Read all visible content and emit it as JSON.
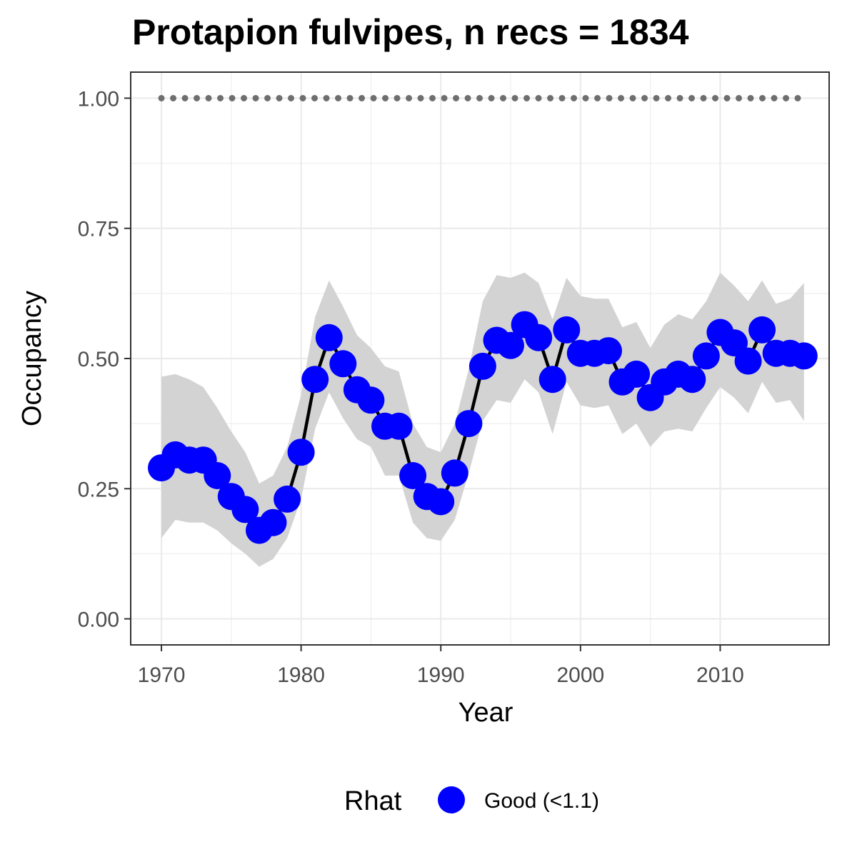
{
  "chart_data": {
    "type": "line",
    "title": "Protapion fulvipes, n recs = 1834",
    "xlabel": "Year",
    "ylabel": "Occupancy",
    "xlim": [
      1967.8,
      2017.8
    ],
    "ylim": [
      -0.05,
      1.05
    ],
    "x_ticks": [
      1970,
      1980,
      1990,
      2000,
      2010
    ],
    "x_tick_labels": [
      "1970",
      "1980",
      "1990",
      "2000",
      "2010"
    ],
    "y_ticks": [
      0,
      0.25,
      0.5,
      0.75,
      1.0
    ],
    "y_tick_labels": [
      "0.00",
      "0.25",
      "0.50",
      "0.75",
      "1.00"
    ],
    "grid": true,
    "legend": {
      "title": "Rhat",
      "position": "bottom",
      "entries": [
        {
          "label": "Good (<1.1)",
          "color": "#0000ff"
        }
      ]
    },
    "x": [
      1970,
      1971,
      1972,
      1973,
      1974,
      1975,
      1976,
      1977,
      1978,
      1979,
      1980,
      1981,
      1982,
      1983,
      1984,
      1985,
      1986,
      1987,
      1988,
      1989,
      1990,
      1991,
      1992,
      1993,
      1994,
      1995,
      1996,
      1997,
      1998,
      1999,
      2000,
      2001,
      2002,
      2003,
      2004,
      2005,
      2006,
      2007,
      2008,
      2009,
      2010,
      2011,
      2012,
      2013,
      2014,
      2015,
      2016
    ],
    "series": [
      {
        "name": "Good (<1.1)",
        "values": [
          0.29,
          0.315,
          0.305,
          0.305,
          0.275,
          0.235,
          0.21,
          0.17,
          0.185,
          0.23,
          0.32,
          0.46,
          0.54,
          0.49,
          0.44,
          0.42,
          0.37,
          0.37,
          0.275,
          0.235,
          0.225,
          0.28,
          0.375,
          0.485,
          0.535,
          0.525,
          0.565,
          0.54,
          0.46,
          0.555,
          0.51,
          0.51,
          0.515,
          0.455,
          0.47,
          0.425,
          0.455,
          0.47,
          0.46,
          0.505,
          0.55,
          0.53,
          0.495,
          0.555,
          0.51,
          0.51,
          0.505
        ],
        "lower": [
          0.155,
          0.19,
          0.185,
          0.185,
          0.17,
          0.145,
          0.125,
          0.1,
          0.115,
          0.155,
          0.23,
          0.365,
          0.435,
          0.385,
          0.345,
          0.33,
          0.275,
          0.275,
          0.185,
          0.155,
          0.15,
          0.19,
          0.28,
          0.38,
          0.42,
          0.415,
          0.46,
          0.435,
          0.355,
          0.455,
          0.41,
          0.405,
          0.41,
          0.355,
          0.375,
          0.33,
          0.36,
          0.365,
          0.36,
          0.405,
          0.445,
          0.425,
          0.395,
          0.455,
          0.415,
          0.42,
          0.38
        ],
        "upper": [
          0.465,
          0.47,
          0.46,
          0.445,
          0.405,
          0.36,
          0.32,
          0.26,
          0.275,
          0.33,
          0.43,
          0.58,
          0.65,
          0.6,
          0.545,
          0.52,
          0.485,
          0.475,
          0.375,
          0.33,
          0.32,
          0.375,
          0.48,
          0.61,
          0.66,
          0.655,
          0.665,
          0.645,
          0.575,
          0.655,
          0.62,
          0.615,
          0.615,
          0.56,
          0.57,
          0.52,
          0.565,
          0.585,
          0.575,
          0.61,
          0.665,
          0.64,
          0.61,
          0.65,
          0.605,
          0.615,
          0.645
        ]
      }
    ],
    "reference_line": {
      "y": 1.0,
      "style": "dotted",
      "color": "#6e6e6e"
    },
    "colors": {
      "point": "#0000ff",
      "line": "#000000",
      "ribbon": "#d3d3d3",
      "grid": "#ebebeb",
      "panel_border": "#333333",
      "tick_text": "#4d4d4d"
    }
  }
}
